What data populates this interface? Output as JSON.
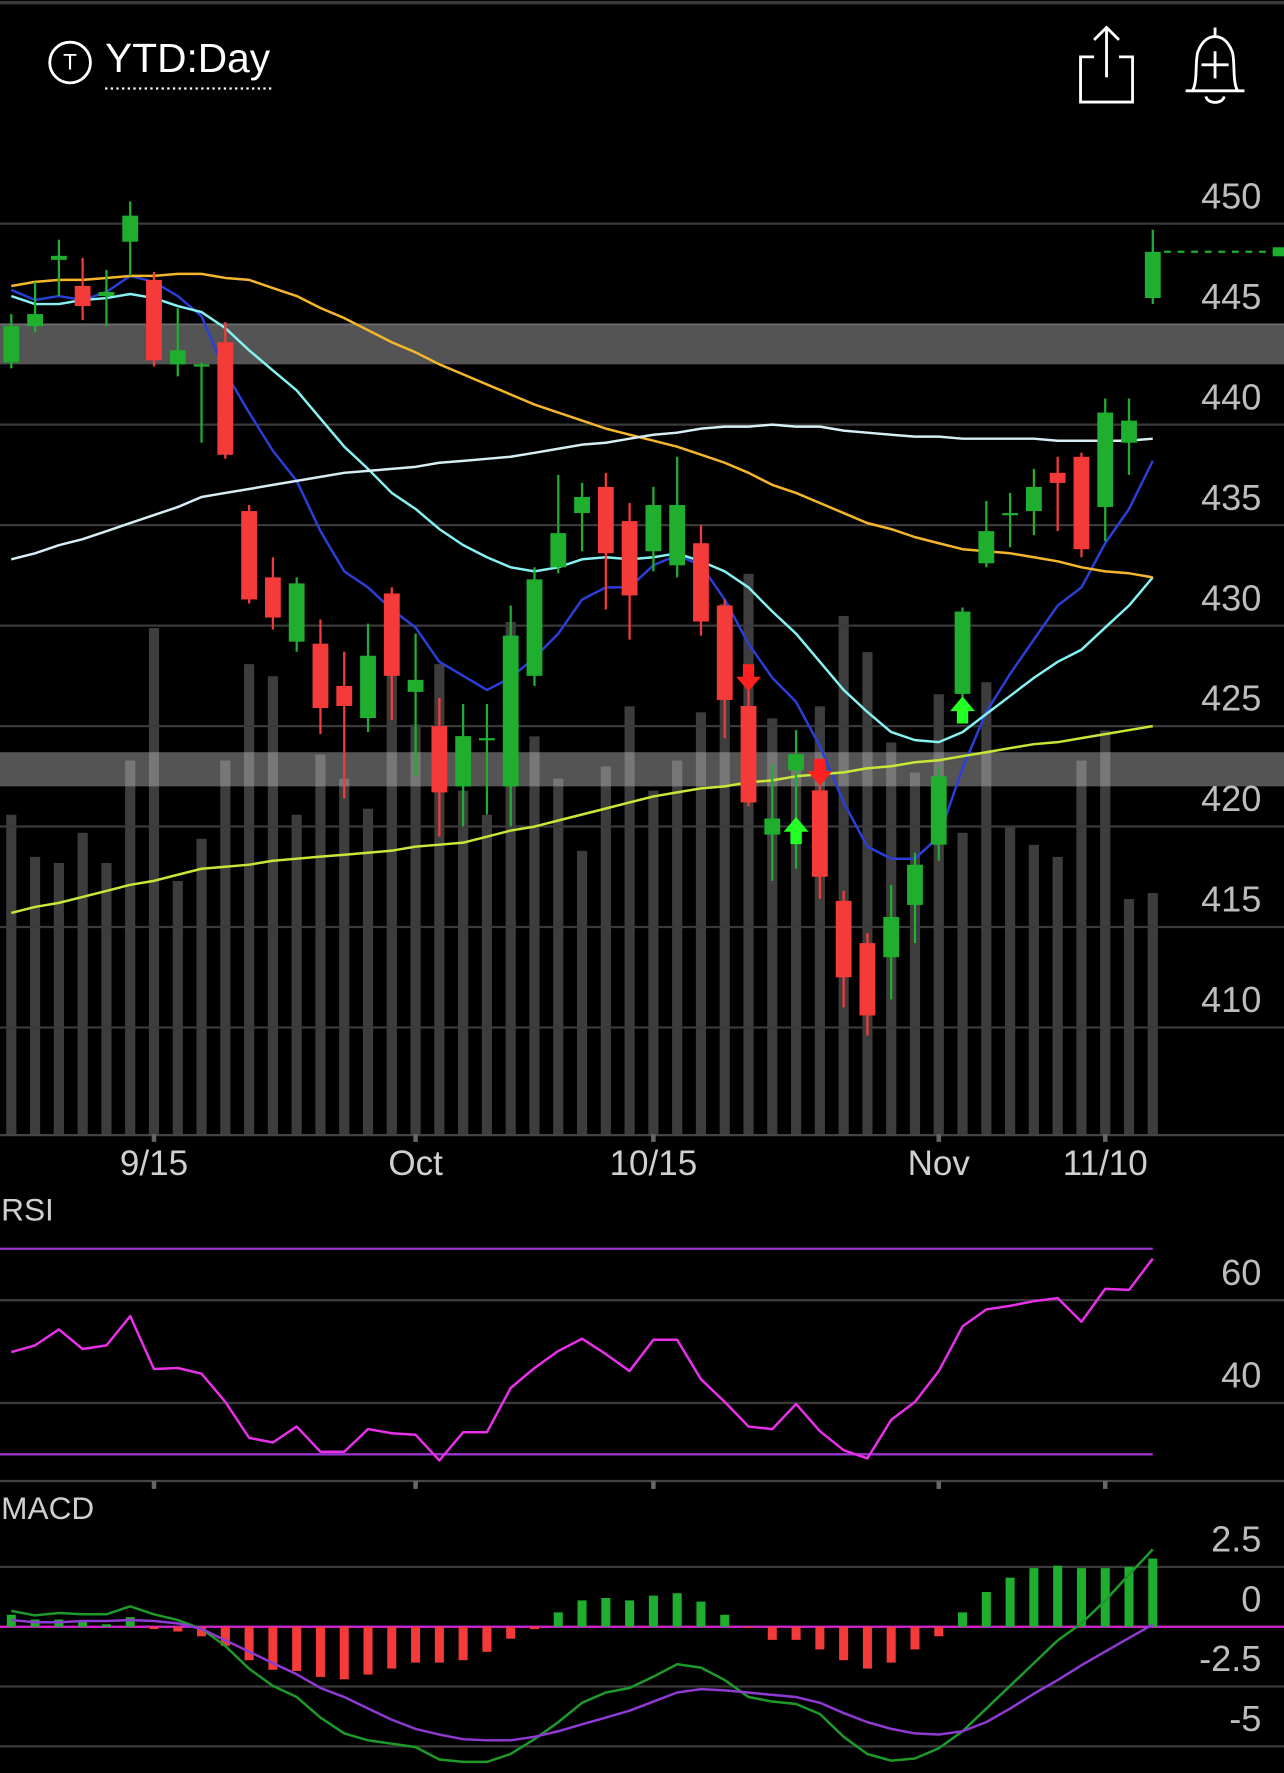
{
  "header": {
    "icon": "T",
    "title": "YTD:Day"
  },
  "chart_data": [
    {
      "type": "candlestick",
      "categories": [
        null,
        null,
        null,
        null,
        null,
        null,
        "9/15",
        null,
        null,
        null,
        null,
        null,
        null,
        null,
        null,
        null,
        null,
        "Oct",
        null,
        null,
        null,
        null,
        null,
        null,
        null,
        null,
        null,
        "10/15",
        null,
        null,
        null,
        null,
        null,
        null,
        null,
        null,
        null,
        null,
        null,
        "Nov",
        null,
        null,
        null,
        null,
        null,
        null,
        "11/10",
        null,
        null
      ],
      "open": [
        443.1,
        444.9,
        448.2,
        446.9,
        446.4,
        449.1,
        447.2,
        443.0,
        443.0,
        444.1,
        435.7,
        432.4,
        429.2,
        429.1,
        427.0,
        425.4,
        431.6,
        426.7,
        425.0,
        422.0,
        424.4,
        422.0,
        427.5,
        432.9,
        435.6,
        436.9,
        435.2,
        433.7,
        433.0,
        434.1,
        431.0,
        426.0,
        419.6,
        422.8,
        421.8,
        416.3,
        414.2,
        413.5,
        416.1,
        419.1,
        426.6,
        433.1,
        435.6,
        435.7,
        437.6,
        438.4,
        435.9,
        439.1,
        446.3
      ],
      "high": [
        445.5,
        447.1,
        449.2,
        448.3,
        447.7,
        451.1,
        447.6,
        445.8,
        443.1,
        445.1,
        436.0,
        433.4,
        432.4,
        430.3,
        428.7,
        430.1,
        431.9,
        429.6,
        426.4,
        426.1,
        426.1,
        431.0,
        432.9,
        437.5,
        437.1,
        437.6,
        436.1,
        436.9,
        438.4,
        435.0,
        431.3,
        427.0,
        423.1,
        424.8,
        422.5,
        416.8,
        414.7,
        417.1,
        418.7,
        423.0,
        430.9,
        436.2,
        436.6,
        437.8,
        438.4,
        438.6,
        441.3,
        441.3,
        449.7
      ],
      "low": [
        442.8,
        444.6,
        446.4,
        445.2,
        444.9,
        447.4,
        442.9,
        442.4,
        439.1,
        438.3,
        431.1,
        429.8,
        428.7,
        424.6,
        421.4,
        424.7,
        425.3,
        422.5,
        419.5,
        420.0,
        420.6,
        420.0,
        427.0,
        432.6,
        433.7,
        430.8,
        429.3,
        432.7,
        432.4,
        429.5,
        424.4,
        421.0,
        417.3,
        417.9,
        416.4,
        411.0,
        409.6,
        411.4,
        414.2,
        418.3,
        426.1,
        432.9,
        433.9,
        434.5,
        434.7,
        433.4,
        434.2,
        437.5,
        446.0
      ],
      "close": [
        444.9,
        445.5,
        448.4,
        445.9,
        446.6,
        450.4,
        443.2,
        443.7,
        443.0,
        438.5,
        431.3,
        430.4,
        432.1,
        425.9,
        426.0,
        428.5,
        427.5,
        427.3,
        421.7,
        424.5,
        424.4,
        429.5,
        432.3,
        434.6,
        436.4,
        433.6,
        431.5,
        436.0,
        436.0,
        430.2,
        426.3,
        421.2,
        420.4,
        423.6,
        417.5,
        412.5,
        410.6,
        415.5,
        418.1,
        422.5,
        430.7,
        434.7,
        435.6,
        436.9,
        437.1,
        433.8,
        440.6,
        440.2,
        448.6
      ],
      "up_color": "#1fae2e",
      "down_color": "#f53a3a",
      "volume": [
        53,
        46,
        45,
        50,
        45,
        62,
        84,
        42,
        49,
        62,
        78,
        76,
        53,
        63,
        59,
        54,
        83,
        68,
        78,
        57,
        53,
        85,
        66,
        59,
        47,
        61,
        71,
        57,
        62,
        70,
        88,
        93,
        69,
        61,
        71,
        86,
        80,
        65,
        60,
        73,
        50,
        75,
        51,
        48,
        46,
        62,
        67,
        39,
        40
      ],
      "vlim": [
        0,
        100
      ],
      "volume_color": "#3d3d3d",
      "overlays": [
        {
          "color": "#2a3fd8",
          "values": [
            446.7,
            446.2,
            446.4,
            446.2,
            446.6,
            447.4,
            447.1,
            446.4,
            445.4,
            442.6,
            440.6,
            438.7,
            437.2,
            434.7,
            432.7,
            431.9,
            430.8,
            429.9,
            428.2,
            427.5,
            426.8,
            427.4,
            428.4,
            429.6,
            431.3,
            431.9,
            431.9,
            433.0,
            433.5,
            433.0,
            431.3,
            429.1,
            427.4,
            426.2,
            424.0,
            421.2,
            419.0,
            418.4,
            418.4,
            419.5,
            422.9,
            425.7,
            427.6,
            429.3,
            431.0,
            431.9,
            434.1,
            435.8,
            438.2
          ]
        },
        {
          "color": "#86f2f2",
          "values": [
            446.4,
            446.0,
            446.0,
            446.2,
            446.3,
            446.5,
            446.3,
            445.9,
            445.6,
            444.8,
            443.7,
            442.7,
            441.7,
            440.3,
            438.9,
            437.8,
            436.6,
            435.8,
            434.8,
            434.0,
            433.4,
            432.9,
            432.7,
            432.9,
            433.3,
            433.4,
            433.3,
            433.4,
            433.6,
            433.2,
            432.7,
            431.9,
            430.7,
            429.6,
            428.2,
            426.8,
            425.7,
            424.7,
            424.3,
            424.2,
            424.7,
            425.6,
            426.5,
            427.4,
            428.2,
            428.8,
            429.9,
            431.0,
            432.4
          ]
        },
        {
          "color": "#f6b62c",
          "values": [
            446.9,
            447.1,
            447.2,
            447.2,
            447.3,
            447.4,
            447.4,
            447.5,
            447.5,
            447.3,
            447.2,
            446.8,
            446.4,
            445.8,
            445.3,
            444.7,
            444.1,
            443.6,
            443.0,
            442.5,
            442.0,
            441.5,
            441.0,
            440.6,
            440.2,
            439.8,
            439.5,
            439.2,
            438.9,
            438.5,
            438.1,
            437.6,
            437.0,
            436.6,
            436.1,
            435.6,
            435.1,
            434.8,
            434.4,
            434.1,
            433.8,
            433.7,
            433.6,
            433.4,
            433.2,
            432.9,
            432.7,
            432.6,
            432.4
          ]
        },
        {
          "color": "#d6eef6",
          "values": [
            433.3,
            433.6,
            434.0,
            434.3,
            434.7,
            435.1,
            435.5,
            435.9,
            436.4,
            436.6,
            436.8,
            437.0,
            437.2,
            437.4,
            437.6,
            437.7,
            437.8,
            437.9,
            438.1,
            438.2,
            438.3,
            438.4,
            438.6,
            438.8,
            439.0,
            439.1,
            439.3,
            439.5,
            439.6,
            439.8,
            439.9,
            439.9,
            440.0,
            439.9,
            439.9,
            439.7,
            439.6,
            439.5,
            439.4,
            439.4,
            439.3,
            439.3,
            439.3,
            439.3,
            439.2,
            439.2,
            439.2,
            439.2,
            439.3
          ]
        },
        {
          "color": "#c6e836",
          "values": [
            415.7,
            416.0,
            416.2,
            416.5,
            416.8,
            417.1,
            417.3,
            417.6,
            417.9,
            418.0,
            418.1,
            418.3,
            418.4,
            418.5,
            418.6,
            418.7,
            418.8,
            419.0,
            419.1,
            419.2,
            419.5,
            419.8,
            420.0,
            420.3,
            420.6,
            420.9,
            421.2,
            421.5,
            421.7,
            421.9,
            422.0,
            422.2,
            422.3,
            422.5,
            422.6,
            422.7,
            422.9,
            423.0,
            423.2,
            423.3,
            423.5,
            423.7,
            423.9,
            424.1,
            424.2,
            424.4,
            424.6,
            424.8,
            425.0
          ]
        }
      ],
      "zones": [
        [
          443.0,
          445.0
        ],
        [
          422.0,
          423.7
        ]
      ],
      "zone_color": "rgba(200,200,200,0.42)",
      "signals": [
        {
          "index": 31,
          "direction": "down",
          "price": 427.4
        },
        {
          "index": 33,
          "direction": "up",
          "price": 419.8
        },
        {
          "index": 34,
          "direction": "down",
          "price": 422.7
        },
        {
          "index": 40,
          "direction": "up",
          "price": 425.8
        }
      ],
      "signal_colors": {
        "up": "#24ff24",
        "down": "#ff2020"
      },
      "ylim": [
        404.7,
        453.8
      ],
      "yticks": [
        450,
        445,
        440,
        435,
        430,
        425,
        420,
        415,
        410
      ],
      "grid": true
    },
    {
      "type": "line",
      "title": "RSI",
      "values": [
        49.9,
        51.2,
        54.3,
        50.5,
        51.2,
        56.9,
        46.6,
        46.8,
        45.7,
        40.2,
        33.2,
        32.3,
        35.4,
        30.5,
        30.5,
        34.9,
        34.1,
        33.8,
        28.8,
        34.3,
        34.3,
        42.9,
        46.8,
        50.1,
        52.5,
        49.5,
        46.2,
        52.3,
        52.3,
        44.6,
        40.2,
        35.4,
        34.9,
        39.8,
        34.5,
        30.8,
        29.2,
        36.7,
        40.2,
        46.2,
        54.9,
        58.2,
        58.9,
        59.8,
        60.4,
        55.8,
        62.2,
        62.0,
        68.1
      ],
      "color": "#e830e8",
      "levels": [
        70,
        30
      ],
      "level_color": "#9a34cc",
      "ylim": [
        24.8,
        73.2
      ],
      "yticks": [
        60,
        40
      ],
      "grid": true
    },
    {
      "type": "macd",
      "title": "MACD",
      "histogram": [
        0.5,
        0.3,
        0.3,
        0.2,
        0.1,
        0.4,
        -0.1,
        -0.2,
        -0.4,
        -0.8,
        -1.4,
        -1.8,
        -1.85,
        -2.1,
        -2.2,
        -2.0,
        -1.75,
        -1.5,
        -1.5,
        -1.4,
        -1.05,
        -0.5,
        -0.1,
        0.6,
        1.1,
        1.2,
        1.1,
        1.3,
        1.4,
        1.05,
        0.5,
        -0.05,
        -0.55,
        -0.55,
        -0.95,
        -1.4,
        -1.75,
        -1.5,
        -0.95,
        -0.4,
        0.6,
        1.45,
        2.05,
        2.45,
        2.55,
        2.45,
        2.45,
        2.5,
        2.85
      ],
      "up_color": "#1fae2e",
      "down_color": "#f53a3a",
      "series": [
        {
          "color": "#1e9a2a",
          "values": [
            0.66,
            0.47,
            0.57,
            0.52,
            0.52,
            0.85,
            0.52,
            0.28,
            -0.09,
            -0.81,
            -1.76,
            -2.47,
            -2.94,
            -3.8,
            -4.46,
            -4.75,
            -4.89,
            -5.03,
            -5.55,
            -5.65,
            -5.65,
            -5.32,
            -4.7,
            -3.99,
            -3.18,
            -2.75,
            -2.56,
            -2.09,
            -1.57,
            -1.71,
            -2.23,
            -2.94,
            -3.13,
            -3.23,
            -3.65,
            -4.6,
            -5.32,
            -5.6,
            -5.51,
            -5.08,
            -4.37,
            -3.42,
            -2.47,
            -1.52,
            -0.57,
            0.14,
            1.09,
            2.18,
            3.23
          ]
        },
        {
          "color": "#8f3ad2",
          "values": [
            0.28,
            0.19,
            0.19,
            0.24,
            0.24,
            0.28,
            0.24,
            0.14,
            -0.09,
            -0.57,
            -1.04,
            -1.52,
            -1.99,
            -2.56,
            -2.94,
            -3.42,
            -3.89,
            -4.27,
            -4.51,
            -4.7,
            -4.75,
            -4.75,
            -4.6,
            -4.37,
            -4.08,
            -3.8,
            -3.51,
            -3.13,
            -2.75,
            -2.61,
            -2.66,
            -2.75,
            -2.85,
            -2.94,
            -3.18,
            -3.61,
            -3.99,
            -4.27,
            -4.46,
            -4.51,
            -4.37,
            -3.99,
            -3.42,
            -2.8,
            -2.23,
            -1.61,
            -1.04,
            -0.47,
            0.09
          ]
        }
      ],
      "zero_color": "#d624d6",
      "ylim": [
        -6.1,
        4.2
      ],
      "yticks": [
        2.5,
        0,
        -2.5,
        -5
      ],
      "grid": true
    }
  ]
}
